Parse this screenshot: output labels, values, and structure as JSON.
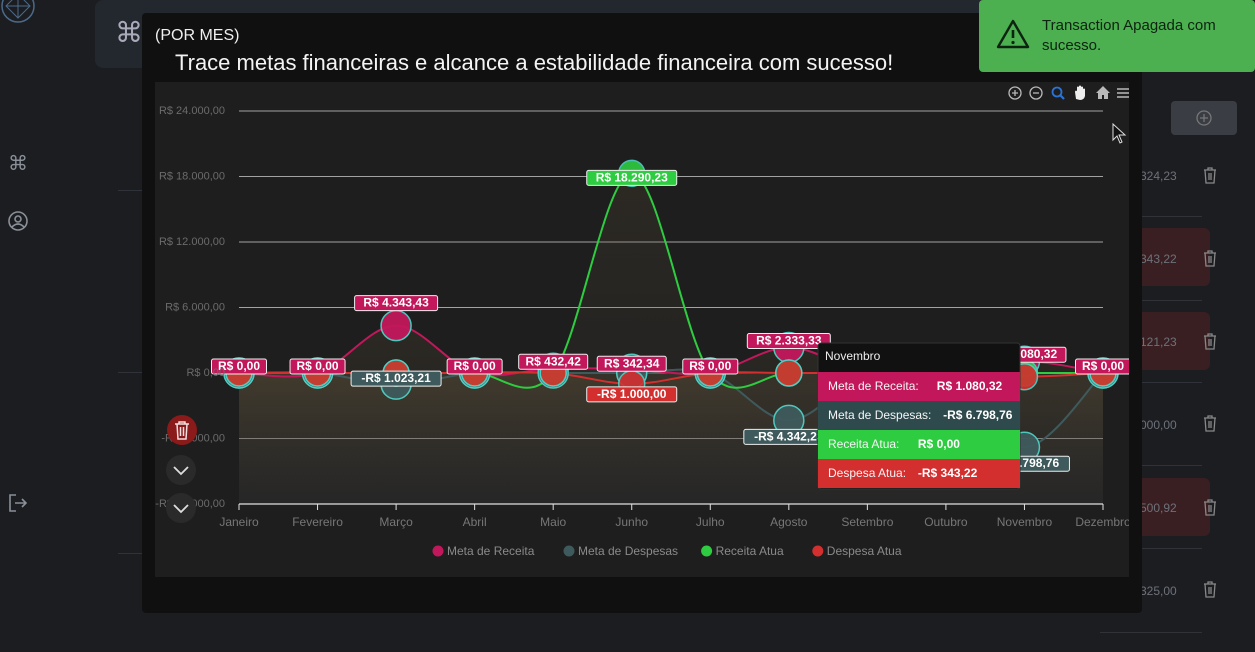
{
  "toast": {
    "message": "Transaction Apagada com sucesso."
  },
  "modal": {
    "subtitle": "(POR MES)",
    "title": "Trace metas financeiras e alcance a estabilidade financeira com sucesso!"
  },
  "background": {
    "amounts": [
      "324,23",
      "343,22",
      "121,23",
      "000,00",
      "500,92",
      "325,00"
    ]
  },
  "colors": {
    "meta_receita": "#c2185b",
    "meta_despesas": "#3f5a5c",
    "receita_atua": "#2ecc40",
    "despesa_atua": "#d32f2f",
    "toast": "#4caf50"
  },
  "chart_data": {
    "type": "area",
    "categories": [
      "Janeiro",
      "Fevereiro",
      "Março",
      "Abril",
      "Maio",
      "Junho",
      "Julho",
      "Agosto",
      "Setembro",
      "Outubro",
      "Novembro",
      "Dezembro"
    ],
    "y_ticks": [
      "R$ 24.000,00",
      "R$ 18.000,00",
      "R$ 12.000,00",
      "R$ 6.000,00",
      "R$ 0,00",
      "-R$ 6.000,00",
      "-R$ 12.000,00"
    ],
    "ylim": [
      -12000,
      24000
    ],
    "grid": true,
    "legend_position": "bottom",
    "series": [
      {
        "name": "Meta de Receita",
        "color": "#c2185b",
        "values": [
          0,
          0,
          4343.43,
          0,
          432.42,
          342.34,
          0,
          2333.33,
          0,
          0,
          1080.32,
          0
        ]
      },
      {
        "name": "Meta de Despesas",
        "color": "#3f5a5c",
        "values": [
          0,
          0,
          -1023.21,
          0,
          0,
          0,
          0,
          -4342.23,
          0,
          0,
          -6798.76,
          0
        ]
      },
      {
        "name": "Receita Atua",
        "color": "#2ecc40",
        "values": [
          0,
          0,
          0,
          0,
          0,
          18290.23,
          0,
          0,
          0,
          0,
          0,
          0
        ]
      },
      {
        "name": "Despesa Atua",
        "color": "#d32f2f",
        "values": [
          0,
          0,
          0,
          0,
          0,
          -1000.0,
          0,
          0,
          0,
          0,
          -343.22,
          0
        ]
      }
    ],
    "data_labels": [
      {
        "text": "R$ 0,00",
        "series": 0,
        "index": 0
      },
      {
        "text": "R$ 0,00",
        "series": 0,
        "index": 1
      },
      {
        "text": "R$ 4.343,43",
        "series": 0,
        "index": 2
      },
      {
        "text": "-R$ 1.023,21",
        "series": 1,
        "index": 2
      },
      {
        "text": "R$ 0,00",
        "series": 0,
        "index": 3
      },
      {
        "text": "R$ 432,42",
        "series": 0,
        "index": 4
      },
      {
        "text": "R$ 18.290,23",
        "series": 2,
        "index": 5
      },
      {
        "text": "-R$ 1.000,00",
        "series": 3,
        "index": 5
      },
      {
        "text": "R$ 342,34",
        "series": 0,
        "index": 5
      },
      {
        "text": "R$ 0,00",
        "series": 0,
        "index": 6
      },
      {
        "text": "R$ 2.333,33",
        "series": 0,
        "index": 7
      },
      {
        "text": "-R$ 4.342,23",
        "series": 1,
        "index": 7
      },
      {
        "text": "R$ 1.080,32",
        "series": 0,
        "index": 10
      },
      {
        "text": "-R$ 6.798,76",
        "series": 1,
        "index": 10
      },
      {
        "text": "R$ 0,00",
        "series": 0,
        "index": 11
      }
    ],
    "tooltip": {
      "title": "Novembro",
      "rows": [
        {
          "label": "Meta de Receita:",
          "value": "R$ 1.080,32"
        },
        {
          "label": "Meta de Despesas:",
          "value": "-R$ 6.798,76"
        },
        {
          "label": "Receita Atua:",
          "value": "R$ 0,00"
        },
        {
          "label": "Despesa Atua:",
          "value": "-R$ 343,22"
        }
      ]
    },
    "toolbar_icons": [
      "zoom-in-icon",
      "zoom-out-icon",
      "selection-zoom-icon",
      "pan-icon",
      "reset-home-icon",
      "menu-icon"
    ]
  }
}
